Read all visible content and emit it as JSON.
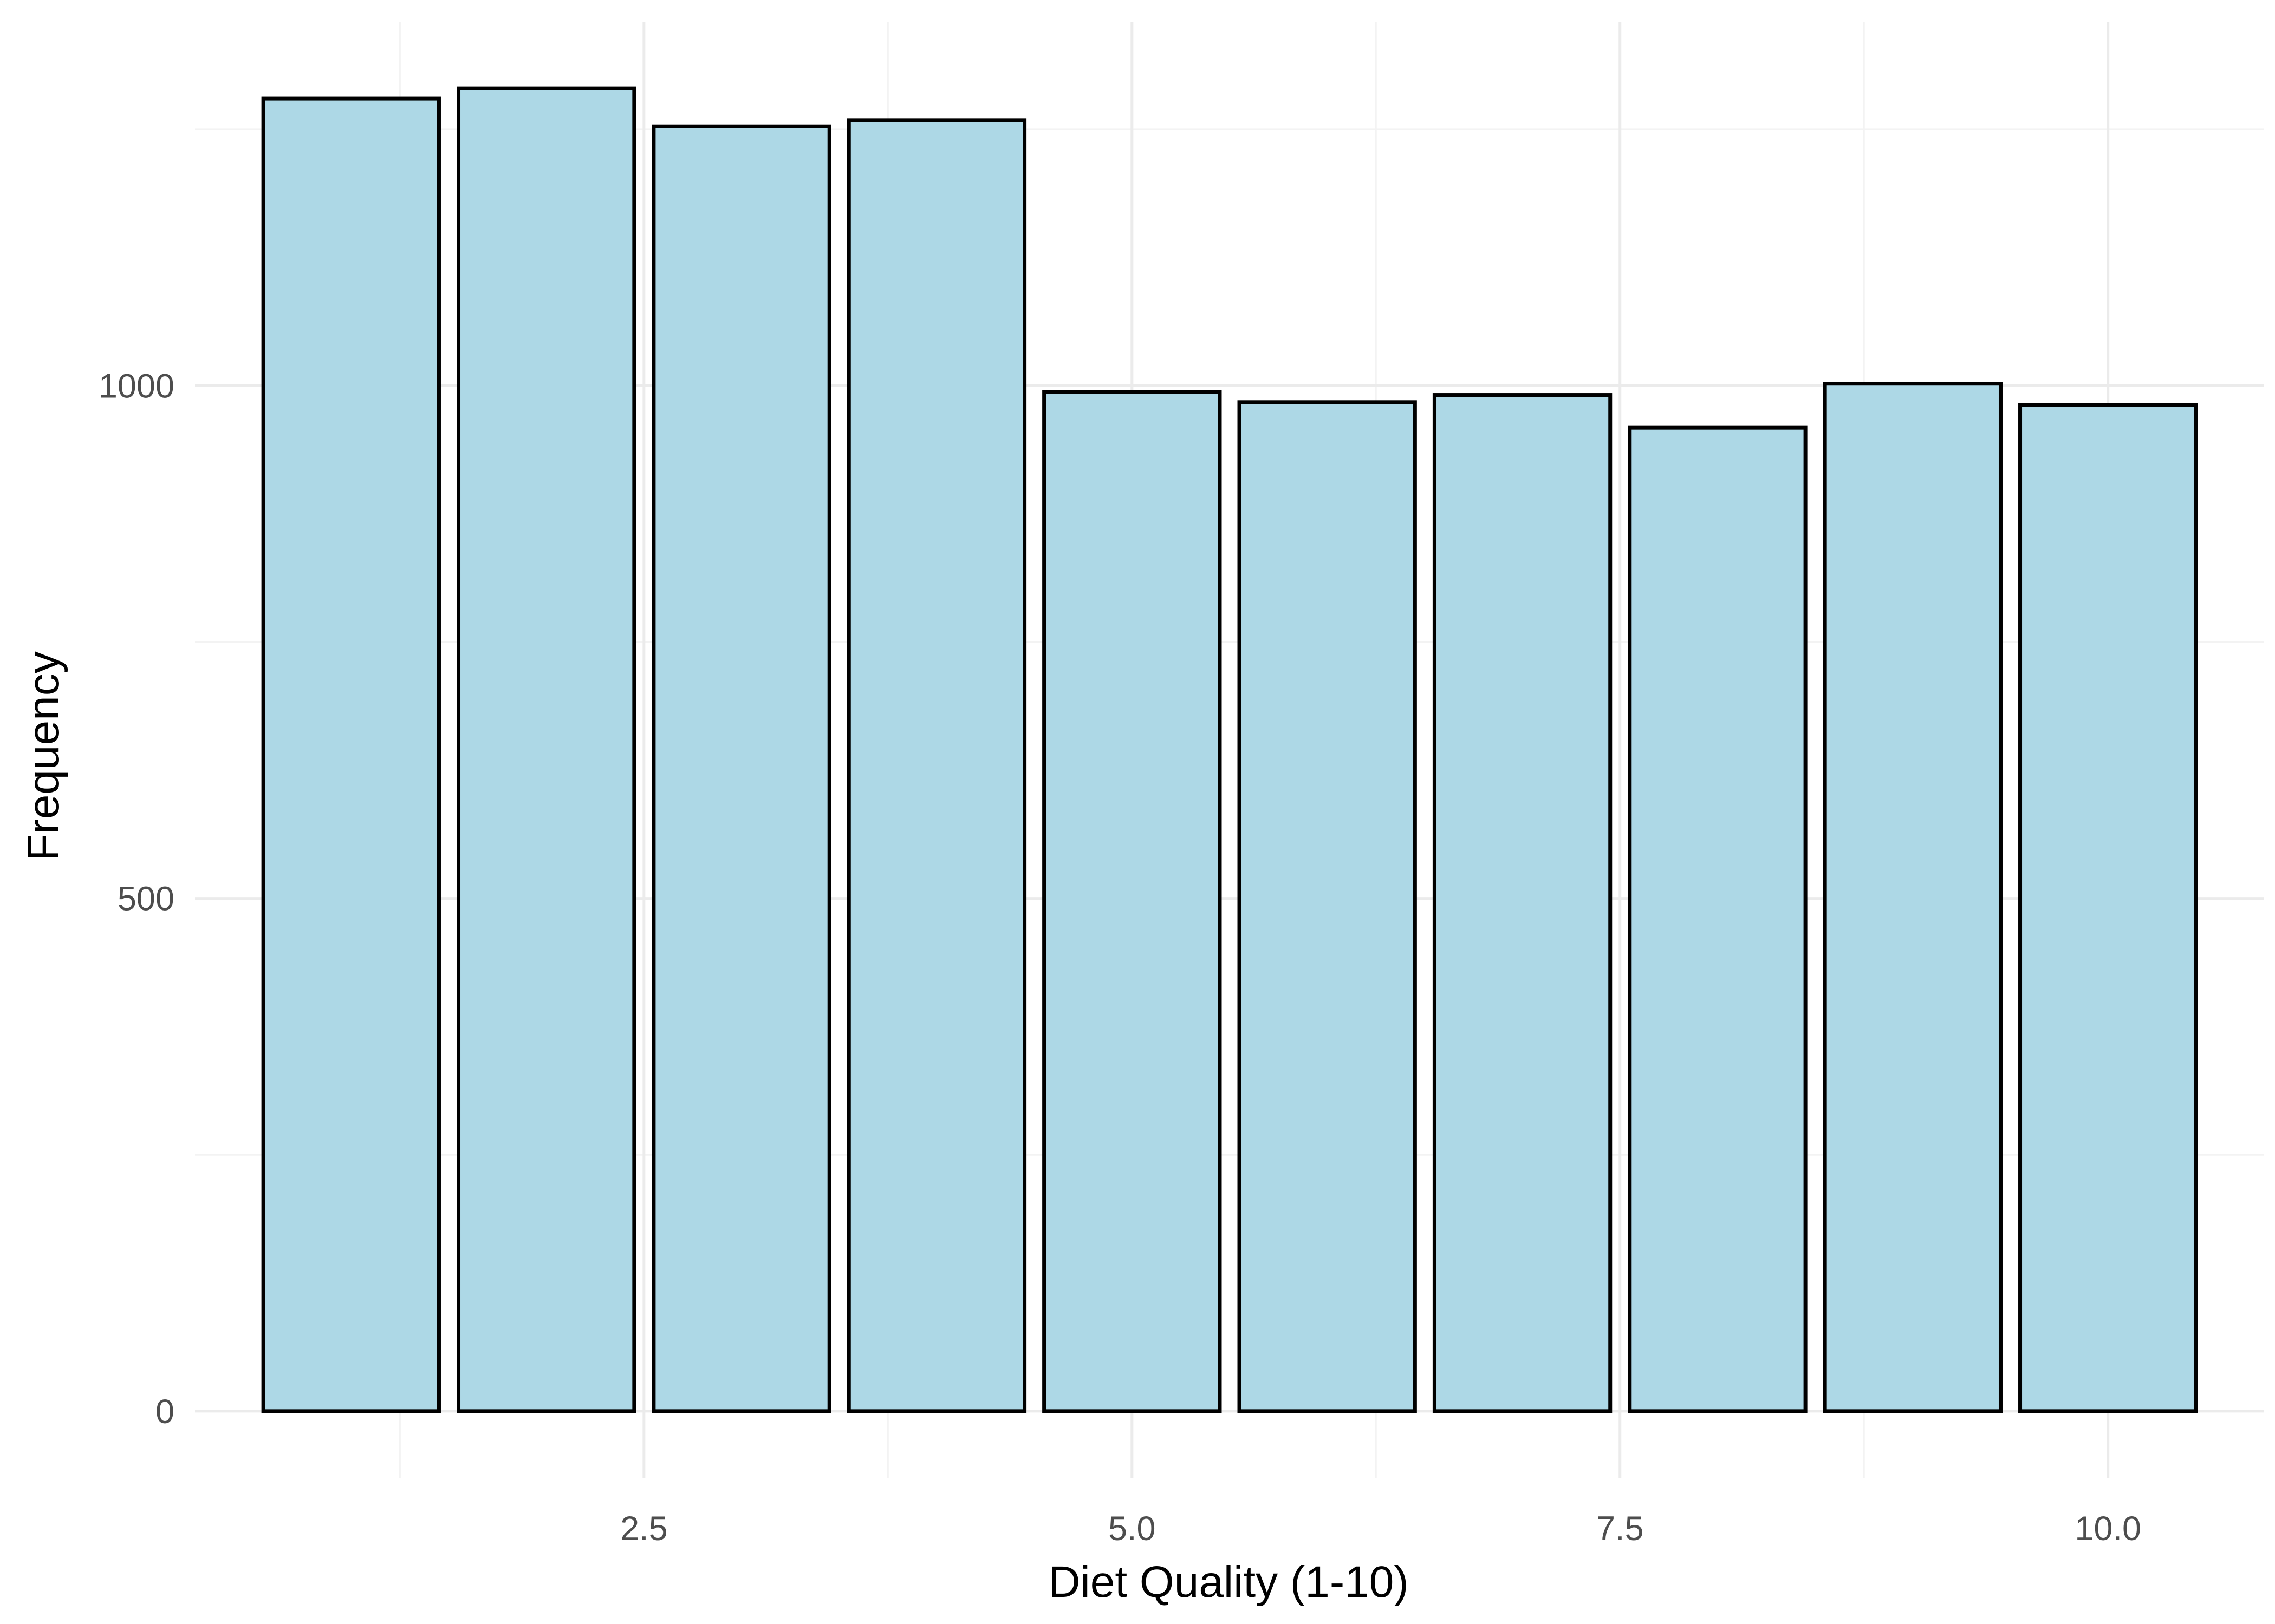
{
  "chart_data": {
    "type": "bar",
    "title": "",
    "xlabel": "Diet Quality (1-10)",
    "ylabel": "Frequency",
    "x": [
      1,
      2,
      3,
      4,
      5,
      6,
      7,
      8,
      9,
      10
    ],
    "values": [
      1280,
      1290,
      1253,
      1259,
      994,
      984,
      991,
      959,
      1002,
      981
    ],
    "xlim": [
      0.2,
      10.8
    ],
    "ylim": [
      -65,
      1355
    ],
    "x_ticks": [
      2.5,
      5.0,
      7.5,
      10.0
    ],
    "x_tick_labels": [
      "2.5",
      "5.0",
      "7.5",
      "10.0"
    ],
    "y_ticks": [
      0,
      500,
      1000
    ],
    "y_tick_labels": [
      "0",
      "500",
      "1000"
    ],
    "bar_fill": "#add8e6",
    "bar_outline": "#000000",
    "grid": true,
    "legend": "none"
  }
}
